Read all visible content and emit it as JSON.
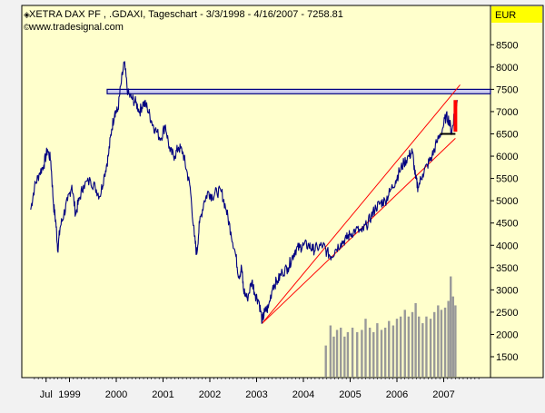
{
  "header": {
    "line1": "XETRA DAX PF     , .GDAXI, Tageschart - 3/3/1998 - 4/16/2007 - 7258.81",
    "line2": "www.tradesignal.com"
  },
  "axis": {
    "currency": "EUR",
    "y_ticks": [
      1500,
      2000,
      2500,
      3000,
      3500,
      4000,
      4500,
      5000,
      5500,
      6000,
      6500,
      7000,
      7500,
      8000,
      8500
    ],
    "x_ticks": [
      {
        "label": "Jul",
        "t": 1998.5
      },
      {
        "label": "1999",
        "t": 1999.0
      },
      {
        "label": "2000",
        "t": 2000.0
      },
      {
        "label": "2001",
        "t": 2001.0
      },
      {
        "label": "2002",
        "t": 2002.0
      },
      {
        "label": "2003",
        "t": 2003.0
      },
      {
        "label": "2004",
        "t": 2004.0
      },
      {
        "label": "2005",
        "t": 2005.0
      },
      {
        "label": "2006",
        "t": 2006.0
      },
      {
        "label": "2007",
        "t": 2007.0
      }
    ]
  },
  "colors": {
    "plot_bg": "#ffffcc",
    "axis_bg": "#ffffcc",
    "axis_label_bg": "#ffff00",
    "price_line": "#000080",
    "channel": "#ff0000",
    "resistance_fill": "#ccccee",
    "resistance_stroke": "#000080",
    "volume": "#999999",
    "last_candle": "#ff0000"
  },
  "chart_data": {
    "type": "line",
    "series": [
      {
        "values": [
          [
            1998.17,
            4800
          ],
          [
            1998.25,
            5300
          ],
          [
            1998.35,
            5600
          ],
          [
            1998.45,
            5800
          ],
          [
            1998.53,
            6150
          ],
          [
            1998.6,
            5900
          ],
          [
            1998.66,
            4900
          ],
          [
            1998.71,
            4500
          ],
          [
            1998.75,
            3900
          ],
          [
            1998.8,
            4400
          ],
          [
            1998.88,
            4700
          ],
          [
            1998.96,
            5000
          ],
          [
            1999.05,
            5350
          ],
          [
            1999.13,
            4700
          ],
          [
            1999.2,
            5000
          ],
          [
            1999.3,
            5350
          ],
          [
            1999.45,
            5450
          ],
          [
            1999.55,
            5300
          ],
          [
            1999.65,
            5100
          ],
          [
            1999.75,
            5600
          ],
          [
            1999.83,
            6000
          ],
          [
            1999.9,
            6600
          ],
          [
            1999.97,
            7000
          ],
          [
            2000.03,
            7000
          ],
          [
            2000.1,
            7600
          ],
          [
            2000.17,
            8100
          ],
          [
            2000.25,
            7400
          ],
          [
            2000.33,
            7300
          ],
          [
            2000.42,
            7200
          ],
          [
            2000.5,
            7000
          ],
          [
            2000.58,
            7200
          ],
          [
            2000.66,
            7100
          ],
          [
            2000.75,
            6800
          ],
          [
            2000.83,
            6600
          ],
          [
            2000.95,
            6400
          ],
          [
            2001.05,
            6700
          ],
          [
            2001.15,
            6100
          ],
          [
            2001.25,
            6000
          ],
          [
            2001.33,
            6200
          ],
          [
            2001.42,
            6100
          ],
          [
            2001.5,
            5700
          ],
          [
            2001.58,
            5300
          ],
          [
            2001.67,
            4200
          ],
          [
            2001.72,
            3800
          ],
          [
            2001.78,
            4500
          ],
          [
            2001.88,
            5000
          ],
          [
            2001.97,
            5200
          ],
          [
            2002.05,
            5100
          ],
          [
            2002.15,
            5200
          ],
          [
            2002.25,
            5200
          ],
          [
            2002.35,
            4800
          ],
          [
            2002.45,
            4300
          ],
          [
            2002.55,
            3800
          ],
          [
            2002.62,
            3300
          ],
          [
            2002.68,
            3500
          ],
          [
            2002.72,
            3000
          ],
          [
            2002.8,
            2800
          ],
          [
            2002.9,
            3200
          ],
          [
            2002.97,
            2900
          ],
          [
            2003.05,
            2750
          ],
          [
            2003.12,
            2300
          ],
          [
            2003.17,
            2500
          ],
          [
            2003.25,
            2600
          ],
          [
            2003.35,
            3100
          ],
          [
            2003.45,
            3200
          ],
          [
            2003.55,
            3400
          ],
          [
            2003.67,
            3500
          ],
          [
            2003.75,
            3700
          ],
          [
            2003.83,
            3900
          ],
          [
            2003.92,
            3950
          ],
          [
            2004.0,
            4000
          ],
          [
            2004.12,
            4000
          ],
          [
            2004.2,
            3900
          ],
          [
            2004.3,
            3950
          ],
          [
            2004.42,
            4000
          ],
          [
            2004.5,
            3850
          ],
          [
            2004.6,
            3750
          ],
          [
            2004.68,
            3900
          ],
          [
            2004.8,
            4050
          ],
          [
            2004.92,
            4150
          ],
          [
            2005.0,
            4250
          ],
          [
            2005.12,
            4350
          ],
          [
            2005.25,
            4300
          ],
          [
            2005.35,
            4450
          ],
          [
            2005.45,
            4650
          ],
          [
            2005.55,
            4850
          ],
          [
            2005.65,
            4950
          ],
          [
            2005.75,
            5000
          ],
          [
            2005.85,
            5200
          ],
          [
            2005.97,
            5450
          ],
          [
            2006.05,
            5650
          ],
          [
            2006.15,
            5850
          ],
          [
            2006.25,
            6000
          ],
          [
            2006.33,
            6100
          ],
          [
            2006.4,
            5500
          ],
          [
            2006.45,
            5300
          ],
          [
            2006.55,
            5600
          ],
          [
            2006.65,
            5800
          ],
          [
            2006.75,
            6000
          ],
          [
            2006.85,
            6300
          ],
          [
            2006.97,
            6600
          ],
          [
            2007.05,
            6900
          ],
          [
            2007.12,
            6800
          ],
          [
            2007.17,
            6500
          ],
          [
            2007.23,
            7000
          ],
          [
            2007.29,
            7258.81
          ]
        ]
      }
    ],
    "volume_bars": [
      [
        2004.48,
        700
      ],
      [
        2004.58,
        1150
      ],
      [
        2004.65,
        900
      ],
      [
        2004.72,
        1050
      ],
      [
        2004.8,
        1100
      ],
      [
        2004.88,
        900
      ],
      [
        2004.95,
        1000
      ],
      [
        2005.05,
        1100
      ],
      [
        2005.15,
        1000
      ],
      [
        2005.25,
        1050
      ],
      [
        2005.33,
        1300
      ],
      [
        2005.42,
        1100
      ],
      [
        2005.5,
        1000
      ],
      [
        2005.58,
        1200
      ],
      [
        2005.67,
        1050
      ],
      [
        2005.75,
        1100
      ],
      [
        2005.83,
        1250
      ],
      [
        2005.92,
        1150
      ],
      [
        2006.0,
        1300
      ],
      [
        2006.08,
        1350
      ],
      [
        2006.17,
        1500
      ],
      [
        2006.25,
        1350
      ],
      [
        2006.33,
        1450
      ],
      [
        2006.4,
        1650
      ],
      [
        2006.47,
        1350
      ],
      [
        2006.55,
        1200
      ],
      [
        2006.63,
        1350
      ],
      [
        2006.72,
        1300
      ],
      [
        2006.8,
        1450
      ],
      [
        2006.88,
        1600
      ],
      [
        2006.95,
        1500
      ],
      [
        2007.03,
        1550
      ],
      [
        2007.1,
        1700
      ],
      [
        2007.15,
        2250
      ],
      [
        2007.2,
        1800
      ],
      [
        2007.25,
        1600
      ]
    ],
    "trend_lower": [
      [
        2003.12,
        2250
      ],
      [
        2007.25,
        6400
      ]
    ],
    "trend_upper": [
      [
        2003.12,
        2250
      ],
      [
        2007.35,
        7600
      ]
    ],
    "resistance_band": {
      "x0": 2000.0,
      "x1": 2008.0,
      "y_low": 7400,
      "y_high": 7500
    },
    "last_candle": {
      "x": 2007.25,
      "open": 6550,
      "close": 7258.81
    },
    "horizontal_marker": {
      "x0": 2006.92,
      "x1": 2007.25,
      "y": 6500
    },
    "ylim": [
      1500,
      9000
    ],
    "xlim": [
      1998.17,
      2007.83
    ]
  }
}
